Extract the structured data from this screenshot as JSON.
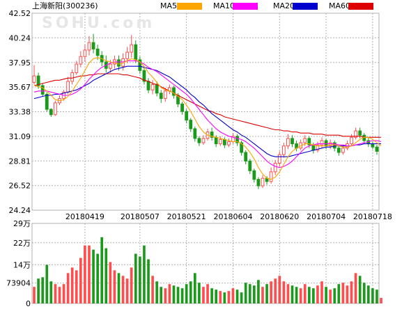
{
  "title": "上海新阳(300236)",
  "watermark": "SOHU.com",
  "colors": {
    "ma5": "#FFA500",
    "ma10": "#FF00FF",
    "ma20": "#0000CC",
    "ma60": "#DD0000",
    "up": "#FF4D4D",
    "down": "#1A9A1A",
    "grid": "#B0B0B0",
    "axis_text": "#000000"
  },
  "legend": [
    {
      "label": "MA5",
      "color_key": "ma5"
    },
    {
      "label": "MA10",
      "color_key": "ma10"
    },
    {
      "label": "MA20",
      "color_key": "ma20"
    },
    {
      "label": "MA60",
      "color_key": "ma60"
    }
  ],
  "chart_data": [
    {
      "type": "candlestick",
      "y_ticks": [
        "42.52",
        "40.24",
        "37.95",
        "35.67",
        "33.38",
        "31.09",
        "28.81",
        "26.52",
        "24.24"
      ],
      "ylim": [
        24.24,
        42.52
      ],
      "x_tick_labels": [
        "20180419",
        "20180507",
        "20180521",
        "20180604",
        "20180620",
        "20180704",
        "20180718"
      ],
      "x_tick_index": [
        12,
        25,
        36,
        47,
        58,
        69,
        80
      ],
      "candles": [
        [
          36.1,
          36.7,
          37.7,
          35.9
        ],
        [
          36.7,
          35.8,
          37.0,
          35.5
        ],
        [
          35.8,
          35.0,
          36.0,
          34.8
        ],
        [
          35.0,
          33.6,
          35.2,
          33.4
        ],
        [
          33.6,
          33.1,
          33.7,
          32.9
        ],
        [
          33.1,
          34.2,
          34.4,
          33.0
        ],
        [
          34.2,
          34.6,
          34.9,
          34.0
        ],
        [
          34.6,
          35.2,
          35.4,
          34.4
        ],
        [
          35.2,
          36.2,
          36.6,
          35.0
        ],
        [
          36.2,
          37.0,
          37.3,
          35.9
        ],
        [
          37.0,
          37.8,
          38.1,
          36.8
        ],
        [
          37.8,
          38.5,
          39.0,
          37.5
        ],
        [
          38.5,
          39.1,
          39.6,
          38.0
        ],
        [
          39.1,
          39.8,
          40.4,
          38.6
        ],
        [
          39.8,
          39.2,
          40.6,
          38.8
        ],
        [
          39.2,
          38.6,
          39.6,
          38.2
        ],
        [
          38.6,
          38.0,
          39.0,
          37.6
        ],
        [
          38.0,
          37.4,
          38.6,
          37.0
        ],
        [
          37.4,
          37.8,
          38.2,
          37.0
        ],
        [
          37.8,
          38.2,
          38.6,
          37.4
        ],
        [
          38.2,
          37.6,
          38.6,
          37.2
        ],
        [
          37.6,
          38.3,
          38.8,
          37.2
        ],
        [
          38.3,
          38.9,
          39.4,
          37.9
        ],
        [
          38.9,
          39.6,
          40.5,
          38.4
        ],
        [
          39.6,
          38.2,
          40.0,
          37.9
        ],
        [
          38.2,
          37.2,
          38.5,
          36.9
        ],
        [
          37.2,
          36.2,
          37.5,
          35.9
        ],
        [
          36.2,
          35.4,
          36.5,
          35.1
        ],
        [
          35.4,
          35.9,
          36.3,
          35.0
        ],
        [
          35.9,
          35.1,
          36.2,
          34.8
        ],
        [
          35.1,
          34.6,
          35.4,
          34.2
        ],
        [
          34.6,
          35.3,
          35.6,
          34.3
        ],
        [
          35.3,
          35.6,
          35.9,
          35.0
        ],
        [
          35.6,
          34.9,
          35.8,
          34.6
        ],
        [
          34.9,
          34.1,
          35.1,
          33.8
        ],
        [
          34.1,
          33.4,
          34.3,
          33.1
        ],
        [
          33.4,
          32.6,
          33.6,
          32.3
        ],
        [
          32.6,
          31.8,
          32.8,
          31.5
        ],
        [
          31.8,
          30.9,
          32.0,
          30.6
        ],
        [
          30.9,
          30.5,
          31.1,
          30.2
        ],
        [
          30.5,
          30.9,
          31.2,
          30.3
        ],
        [
          30.9,
          31.5,
          31.8,
          30.7
        ],
        [
          31.5,
          31.0,
          31.9,
          30.7
        ],
        [
          31.0,
          30.4,
          31.2,
          30.1
        ],
        [
          30.4,
          30.8,
          31.1,
          30.2
        ],
        [
          30.8,
          30.3,
          31.0,
          30.0
        ],
        [
          30.3,
          30.6,
          30.9,
          30.1
        ],
        [
          30.6,
          31.1,
          31.4,
          30.4
        ],
        [
          31.1,
          30.5,
          31.3,
          30.2
        ],
        [
          30.5,
          29.6,
          30.7,
          29.3
        ],
        [
          29.6,
          28.8,
          29.8,
          28.5
        ],
        [
          28.8,
          27.9,
          29.0,
          27.6
        ],
        [
          27.9,
          27.1,
          28.1,
          26.8
        ],
        [
          27.1,
          26.5,
          27.3,
          26.2
        ],
        [
          26.5,
          27.2,
          27.5,
          26.3
        ],
        [
          27.2,
          26.9,
          27.4,
          26.6
        ],
        [
          26.9,
          27.8,
          28.2,
          26.7
        ],
        [
          27.8,
          28.6,
          28.9,
          27.5
        ],
        [
          28.6,
          29.4,
          29.7,
          28.3
        ],
        [
          29.4,
          30.2,
          30.5,
          29.1
        ],
        [
          30.2,
          30.9,
          31.3,
          29.9
        ],
        [
          30.9,
          30.4,
          31.2,
          30.1
        ],
        [
          30.4,
          30.0,
          30.7,
          29.7
        ],
        [
          30.0,
          30.5,
          30.8,
          29.8
        ],
        [
          30.5,
          30.9,
          31.2,
          30.2
        ],
        [
          30.9,
          30.3,
          31.1,
          30.0
        ],
        [
          30.3,
          29.8,
          30.5,
          29.5
        ],
        [
          29.8,
          30.3,
          30.6,
          29.6
        ],
        [
          30.3,
          30.7,
          31.0,
          30.0
        ],
        [
          30.7,
          30.2,
          30.9,
          29.9
        ],
        [
          30.2,
          30.5,
          30.8,
          29.9
        ],
        [
          30.5,
          30.0,
          30.7,
          29.7
        ],
        [
          30.0,
          29.6,
          30.2,
          29.3
        ],
        [
          29.6,
          30.0,
          30.3,
          29.4
        ],
        [
          30.0,
          30.4,
          30.7,
          29.8
        ],
        [
          30.4,
          31.0,
          31.3,
          30.2
        ],
        [
          31.0,
          31.6,
          31.9,
          30.8
        ],
        [
          31.6,
          31.2,
          31.9,
          30.9
        ],
        [
          31.2,
          30.7,
          31.4,
          30.4
        ],
        [
          30.7,
          30.4,
          31.0,
          30.1
        ],
        [
          30.4,
          30.1,
          30.6,
          29.9
        ],
        [
          30.1,
          29.7,
          30.3,
          29.4
        ]
      ],
      "ma5": [
        35.8,
        35.7,
        35.6,
        35.3,
        34.9,
        34.5,
        34.4,
        34.5,
        34.8,
        35.3,
        35.9,
        36.5,
        37.2,
        37.9,
        38.3,
        38.4,
        38.3,
        38.1,
        38.0,
        37.9,
        37.8,
        37.9,
        38.1,
        38.3,
        38.2,
        38.0,
        37.6,
        37.0,
        36.6,
        36.1,
        35.6,
        35.4,
        35.3,
        35.1,
        34.8,
        34.5,
        34.0,
        33.4,
        32.7,
        32.0,
        31.5,
        31.2,
        31.1,
        31.0,
        30.9,
        30.8,
        30.7,
        30.6,
        30.6,
        30.4,
        30.1,
        29.6,
        29.0,
        28.2,
        27.6,
        27.2,
        27.1,
        27.3,
        27.8,
        28.5,
        29.2,
        29.7,
        30.0,
        30.2,
        30.4,
        30.4,
        30.3,
        30.2,
        30.2,
        30.2,
        30.3,
        30.3,
        30.2,
        30.1,
        30.1,
        30.2,
        30.5,
        30.8,
        31.0,
        31.0,
        30.8,
        30.5,
        30.2
      ],
      "ma10": [
        35.2,
        35.3,
        35.3,
        35.3,
        35.2,
        35.1,
        35.0,
        34.9,
        34.9,
        35.0,
        35.2,
        35.5,
        35.9,
        36.4,
        36.8,
        37.2,
        37.5,
        37.7,
        37.9,
        38.0,
        38.0,
        38.0,
        38.1,
        38.1,
        38.1,
        38.0,
        37.8,
        37.5,
        37.3,
        37.1,
        36.8,
        36.5,
        36.2,
        35.9,
        35.6,
        35.3,
        35.0,
        34.6,
        34.1,
        33.6,
        33.1,
        32.6,
        32.2,
        31.8,
        31.5,
        31.3,
        31.1,
        31.0,
        30.9,
        30.8,
        30.6,
        30.3,
        30.0,
        29.6,
        29.2,
        28.8,
        28.5,
        28.3,
        28.2,
        28.3,
        28.5,
        28.8,
        29.2,
        29.6,
        30.0,
        30.2,
        30.3,
        30.4,
        30.4,
        30.4,
        30.4,
        30.4,
        30.3,
        30.3,
        30.2,
        30.2,
        30.3,
        30.4,
        30.5,
        30.6,
        30.7,
        30.7,
        30.6
      ],
      "ma20": [
        34.6,
        34.7,
        34.8,
        34.9,
        34.9,
        35.0,
        35.0,
        35.1,
        35.2,
        35.3,
        35.4,
        35.6,
        35.8,
        36.0,
        36.3,
        36.5,
        36.7,
        36.9,
        37.1,
        37.3,
        37.4,
        37.5,
        37.6,
        37.6,
        37.6,
        37.6,
        37.5,
        37.4,
        37.3,
        37.2,
        37.0,
        36.8,
        36.6,
        36.3,
        36.0,
        35.7,
        35.4,
        35.0,
        34.7,
        34.3,
        34.0,
        33.6,
        33.2,
        32.9,
        32.6,
        32.3,
        32.0,
        31.7,
        31.5,
        31.2,
        31.0,
        30.7,
        30.4,
        30.1,
        29.8,
        29.5,
        29.3,
        29.2,
        29.2,
        29.2,
        29.2,
        29.3,
        29.4,
        29.5,
        29.6,
        29.7,
        29.8,
        29.9,
        30.0,
        30.1,
        30.1,
        30.2,
        30.2,
        30.2,
        30.2,
        30.2,
        30.3,
        30.3,
        30.4,
        30.4,
        30.4,
        30.4,
        30.4
      ],
      "ma60": [
        35.8,
        35.9,
        36.0,
        36.1,
        36.2,
        36.3,
        36.3,
        36.4,
        36.5,
        36.5,
        36.6,
        36.7,
        36.7,
        36.8,
        36.8,
        36.9,
        36.9,
        36.9,
        36.9,
        36.9,
        36.9,
        36.8,
        36.8,
        36.7,
        36.6,
        36.5,
        36.3,
        36.2,
        36.0,
        35.9,
        35.7,
        35.5,
        35.3,
        35.1,
        34.9,
        34.7,
        34.5,
        34.3,
        34.1,
        33.9,
        33.7,
        33.5,
        33.4,
        33.2,
        33.1,
        32.9,
        32.8,
        32.7,
        32.6,
        32.5,
        32.4,
        32.3,
        32.2,
        32.1,
        32.0,
        31.9,
        31.8,
        31.7,
        31.7,
        31.6,
        31.6,
        31.5,
        31.5,
        31.4,
        31.4,
        31.4,
        31.3,
        31.3,
        31.3,
        31.2,
        31.2,
        31.2,
        31.2,
        31.1,
        31.1,
        31.1,
        31.1,
        31.1,
        31.0,
        31.0,
        31.0,
        31.0,
        31.0
      ]
    },
    {
      "type": "bar",
      "y_ticks": [
        "29万",
        "22万",
        "14万",
        "73904",
        "0"
      ],
      "y_tick_values": [
        290000,
        220000,
        140000,
        73904,
        0
      ],
      "ylim": [
        0,
        290000
      ],
      "unit": "万",
      "volumes": [
        60000,
        90000,
        95000,
        140000,
        80000,
        70000,
        60000,
        70000,
        110000,
        130000,
        120000,
        165000,
        210000,
        210000,
        195000,
        180000,
        240000,
        200000,
        150000,
        120000,
        110000,
        100000,
        90000,
        130000,
        180000,
        170000,
        210000,
        160000,
        100000,
        80000,
        60000,
        55000,
        70000,
        65000,
        60000,
        55000,
        70000,
        80000,
        110000,
        75000,
        60000,
        70000,
        55000,
        50000,
        45000,
        40000,
        45000,
        55000,
        50000,
        40000,
        75000,
        70000,
        65000,
        85000,
        60000,
        70000,
        80000,
        90000,
        100000,
        80000,
        70000,
        65000,
        60000,
        55000,
        70000,
        60000,
        55000,
        65000,
        80000,
        60000,
        50000,
        55000,
        70000,
        75000,
        65000,
        80000,
        110000,
        100000,
        75000,
        65000,
        55000,
        50000,
        20000
      ]
    }
  ]
}
